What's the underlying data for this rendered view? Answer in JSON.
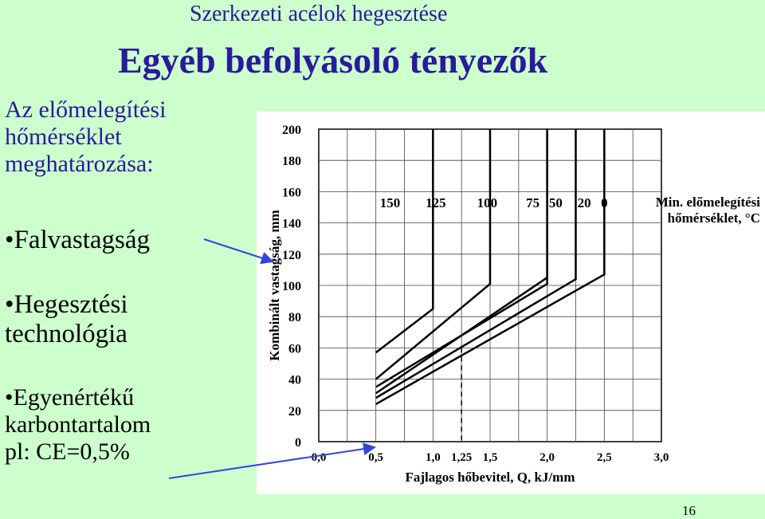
{
  "header": {
    "subtitle": "Szerkezeti acélok hegesztése",
    "title": "Egyéb befolyásoló tényezők"
  },
  "sidebar": {
    "title_lines": [
      "Az előmelegítési",
      "hőmérséklet",
      "meghatározása:"
    ],
    "bullets": [
      {
        "lines": [
          "Falvastagság"
        ]
      },
      {
        "lines": [
          "Hegesztési",
          "technológia"
        ]
      },
      {
        "lines": [
          "Egyenértékű",
          "karbontartalom",
          "pl: CE=0,5%"
        ]
      }
    ],
    "bullet_symbol": "•"
  },
  "page_number": "16",
  "colors": {
    "background": "#ccffcc",
    "title": "#2a1a9c",
    "arrow": "#3344dd",
    "chart_lines": "#000000"
  },
  "chart_data": {
    "type": "line",
    "xlabel": "Fajlagos hőbevitel, Q, kJ/mm",
    "ylabel": "Kombinált vastagság, mm",
    "xlim": [
      0,
      3.0
    ],
    "ylim": [
      0,
      200
    ],
    "x_ticks": [
      0,
      0.5,
      1.0,
      1.25,
      1.5,
      2.0,
      2.5,
      3.0
    ],
    "x_tick_labels": [
      "0,0",
      "0,5",
      "1,0",
      "1,25",
      "1,5",
      "2,0",
      "2,5",
      "3,0"
    ],
    "y_ticks": [
      0,
      20,
      40,
      60,
      80,
      100,
      120,
      140,
      160,
      180,
      200
    ],
    "y_tick_labels": [
      "0",
      "20",
      "40",
      "60",
      "80",
      "100",
      "120",
      "140",
      "160",
      "180",
      "200"
    ],
    "grid": true,
    "legend_title_lines": [
      "Min. előmelegítési",
      "hőmérséklet, °C"
    ],
    "series": [
      {
        "name": "150",
        "x": [
          0.5,
          0.5
        ],
        "y": [
          200,
          200
        ]
      },
      {
        "name": "125",
        "x": [
          0.5,
          1.0,
          1.0
        ],
        "y": [
          57,
          85,
          200
        ]
      },
      {
        "name": "100",
        "x": [
          0.5,
          1.5,
          1.5
        ],
        "y": [
          40,
          101,
          200
        ]
      },
      {
        "name": "75",
        "x": [
          0.5,
          2.0,
          2.0
        ],
        "y": [
          35,
          101,
          200
        ]
      },
      {
        "name": "50",
        "x": [
          0.5,
          2.0,
          2.0
        ],
        "y": [
          31,
          105,
          200
        ]
      },
      {
        "name": "20",
        "x": [
          0.5,
          2.25,
          2.25
        ],
        "y": [
          28,
          104,
          200
        ]
      },
      {
        "name": "0",
        "x": [
          0.5,
          2.5,
          2.5
        ],
        "y": [
          24,
          107,
          200
        ]
      }
    ],
    "annotation": {
      "x": 1.25,
      "y_from": 0,
      "y_to": 60,
      "style": "dashed"
    }
  }
}
